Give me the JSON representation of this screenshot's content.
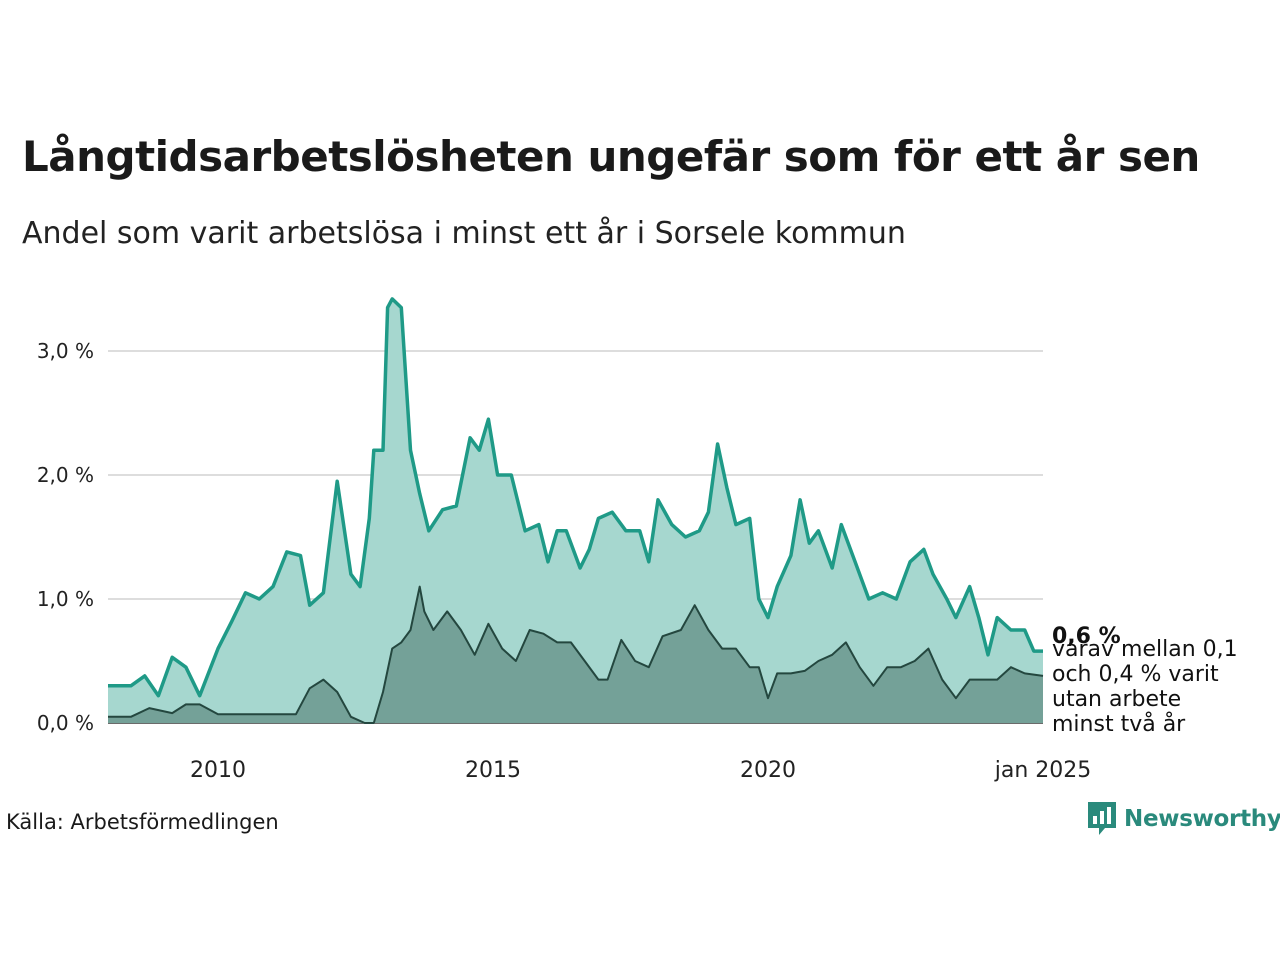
{
  "title": "Långtidsarbetslösheten ungefär som för ett år sen",
  "subtitle": "Andel som varit arbetslösa i minst ett år i Sorsele kommun",
  "source": "Källa: Arbetsförmedlingen",
  "brand": "Newsworthy",
  "end_value_label": "0,6 %",
  "end_note_lines": [
    "varav mellan 0,1",
    "och 0,4 % varit",
    "utan arbete",
    "minst två år"
  ],
  "colors": {
    "main_line": "#1f9a87",
    "main_fill": "#a6d7cf",
    "sub_line": "#24473f",
    "sub_fill": "#74a198",
    "grid": "#dddddd",
    "brand": "#2a8a7c"
  },
  "chart_data": {
    "type": "area",
    "x_range": [
      "2008-01",
      "2025-01"
    ],
    "ylim": [
      0,
      3.5
    ],
    "y_ticks": [
      {
        "value": 0,
        "label": "0,0 %"
      },
      {
        "value": 1,
        "label": "1,0 %"
      },
      {
        "value": 2,
        "label": "2,0 %"
      },
      {
        "value": 3,
        "label": "3,0 %"
      }
    ],
    "x_ticks": [
      {
        "value": 2010,
        "label": "2010"
      },
      {
        "value": 2015,
        "label": "2015"
      },
      {
        "value": 2020,
        "label": "2020"
      },
      {
        "value": 2025,
        "label": "jan 2025"
      }
    ],
    "grid": true,
    "series": [
      {
        "points": [
          [
            "2008-01",
            0.3
          ],
          [
            "2008-06",
            0.3
          ],
          [
            "2008-09",
            0.38
          ],
          [
            "2008-12",
            0.22
          ],
          [
            "2009-03",
            0.53
          ],
          [
            "2009-06",
            0.45
          ],
          [
            "2009-09",
            0.22
          ],
          [
            "2010-01",
            0.6
          ],
          [
            "2010-04",
            0.82
          ],
          [
            "2010-07",
            1.05
          ],
          [
            "2010-10",
            1.0
          ],
          [
            "2011-01",
            1.1
          ],
          [
            "2011-04",
            1.38
          ],
          [
            "2011-07",
            1.35
          ],
          [
            "2011-09",
            0.95
          ],
          [
            "2011-12",
            1.05
          ],
          [
            "2012-03",
            1.95
          ],
          [
            "2012-06",
            1.2
          ],
          [
            "2012-08",
            1.1
          ],
          [
            "2012-10",
            1.65
          ],
          [
            "2012-11",
            2.2
          ],
          [
            "2013-01",
            2.2
          ],
          [
            "2013-02",
            3.35
          ],
          [
            "2013-03",
            3.42
          ],
          [
            "2013-05",
            3.35
          ],
          [
            "2013-07",
            2.2
          ],
          [
            "2013-09",
            1.85
          ],
          [
            "2013-11",
            1.55
          ],
          [
            "2014-02",
            1.72
          ],
          [
            "2014-05",
            1.75
          ],
          [
            "2014-08",
            2.3
          ],
          [
            "2014-10",
            2.2
          ],
          [
            "2014-12",
            2.45
          ],
          [
            "2015-02",
            2.0
          ],
          [
            "2015-05",
            2.0
          ],
          [
            "2015-08",
            1.55
          ],
          [
            "2015-11",
            1.6
          ],
          [
            "2016-01",
            1.3
          ],
          [
            "2016-03",
            1.55
          ],
          [
            "2016-05",
            1.55
          ],
          [
            "2016-08",
            1.25
          ],
          [
            "2016-10",
            1.4
          ],
          [
            "2016-12",
            1.65
          ],
          [
            "2017-03",
            1.7
          ],
          [
            "2017-06",
            1.55
          ],
          [
            "2017-09",
            1.55
          ],
          [
            "2017-11",
            1.3
          ],
          [
            "2018-01",
            1.8
          ],
          [
            "2018-04",
            1.6
          ],
          [
            "2018-07",
            1.5
          ],
          [
            "2018-10",
            1.55
          ],
          [
            "2018-12",
            1.7
          ],
          [
            "2019-02",
            2.25
          ],
          [
            "2019-04",
            1.9
          ],
          [
            "2019-06",
            1.6
          ],
          [
            "2019-09",
            1.65
          ],
          [
            "2019-11",
            1.0
          ],
          [
            "2020-01",
            0.85
          ],
          [
            "2020-03",
            1.1
          ],
          [
            "2020-06",
            1.35
          ],
          [
            "2020-08",
            1.8
          ],
          [
            "2020-10",
            1.45
          ],
          [
            "2020-12",
            1.55
          ],
          [
            "2021-03",
            1.25
          ],
          [
            "2021-05",
            1.6
          ],
          [
            "2021-08",
            1.3
          ],
          [
            "2021-11",
            1.0
          ],
          [
            "2022-02",
            1.05
          ],
          [
            "2022-05",
            1.0
          ],
          [
            "2022-08",
            1.3
          ],
          [
            "2022-11",
            1.4
          ],
          [
            "2023-01",
            1.2
          ],
          [
            "2023-04",
            1.0
          ],
          [
            "2023-06",
            0.85
          ],
          [
            "2023-09",
            1.1
          ],
          [
            "2023-11",
            0.85
          ],
          [
            "2024-01",
            0.55
          ],
          [
            "2024-03",
            0.85
          ],
          [
            "2024-06",
            0.75
          ],
          [
            "2024-09",
            0.75
          ],
          [
            "2024-11",
            0.58
          ],
          [
            "2025-01",
            0.58
          ]
        ]
      },
      {
        "points": [
          [
            "2008-01",
            0.05
          ],
          [
            "2008-06",
            0.05
          ],
          [
            "2008-10",
            0.12
          ],
          [
            "2009-03",
            0.08
          ],
          [
            "2009-06",
            0.15
          ],
          [
            "2009-09",
            0.15
          ],
          [
            "2010-01",
            0.07
          ],
          [
            "2010-06",
            0.07
          ],
          [
            "2011-01",
            0.07
          ],
          [
            "2011-06",
            0.07
          ],
          [
            "2011-09",
            0.28
          ],
          [
            "2011-12",
            0.35
          ],
          [
            "2012-03",
            0.25
          ],
          [
            "2012-06",
            0.05
          ],
          [
            "2012-09",
            0.0
          ],
          [
            "2012-11",
            0.0
          ],
          [
            "2013-01",
            0.25
          ],
          [
            "2013-03",
            0.6
          ],
          [
            "2013-05",
            0.65
          ],
          [
            "2013-07",
            0.75
          ],
          [
            "2013-09",
            1.1
          ],
          [
            "2013-10",
            0.9
          ],
          [
            "2013-12",
            0.75
          ],
          [
            "2014-03",
            0.9
          ],
          [
            "2014-06",
            0.75
          ],
          [
            "2014-09",
            0.55
          ],
          [
            "2014-12",
            0.8
          ],
          [
            "2015-03",
            0.6
          ],
          [
            "2015-06",
            0.5
          ],
          [
            "2015-09",
            0.75
          ],
          [
            "2015-12",
            0.72
          ],
          [
            "2016-03",
            0.65
          ],
          [
            "2016-06",
            0.65
          ],
          [
            "2016-09",
            0.5
          ],
          [
            "2016-12",
            0.35
          ],
          [
            "2017-02",
            0.35
          ],
          [
            "2017-05",
            0.67
          ],
          [
            "2017-08",
            0.5
          ],
          [
            "2017-11",
            0.45
          ],
          [
            "2018-02",
            0.7
          ],
          [
            "2018-06",
            0.75
          ],
          [
            "2018-09",
            0.95
          ],
          [
            "2018-12",
            0.75
          ],
          [
            "2019-03",
            0.6
          ],
          [
            "2019-06",
            0.6
          ],
          [
            "2019-09",
            0.45
          ],
          [
            "2019-11",
            0.45
          ],
          [
            "2020-01",
            0.2
          ],
          [
            "2020-03",
            0.4
          ],
          [
            "2020-06",
            0.4
          ],
          [
            "2020-09",
            0.42
          ],
          [
            "2020-12",
            0.5
          ],
          [
            "2021-03",
            0.55
          ],
          [
            "2021-06",
            0.65
          ],
          [
            "2021-09",
            0.45
          ],
          [
            "2021-12",
            0.3
          ],
          [
            "2022-03",
            0.45
          ],
          [
            "2022-06",
            0.45
          ],
          [
            "2022-09",
            0.5
          ],
          [
            "2022-12",
            0.6
          ],
          [
            "2023-03",
            0.35
          ],
          [
            "2023-06",
            0.2
          ],
          [
            "2023-09",
            0.35
          ],
          [
            "2023-12",
            0.35
          ],
          [
            "2024-03",
            0.35
          ],
          [
            "2024-06",
            0.45
          ],
          [
            "2024-09",
            0.4
          ],
          [
            "2025-01",
            0.38
          ]
        ]
      }
    ]
  }
}
